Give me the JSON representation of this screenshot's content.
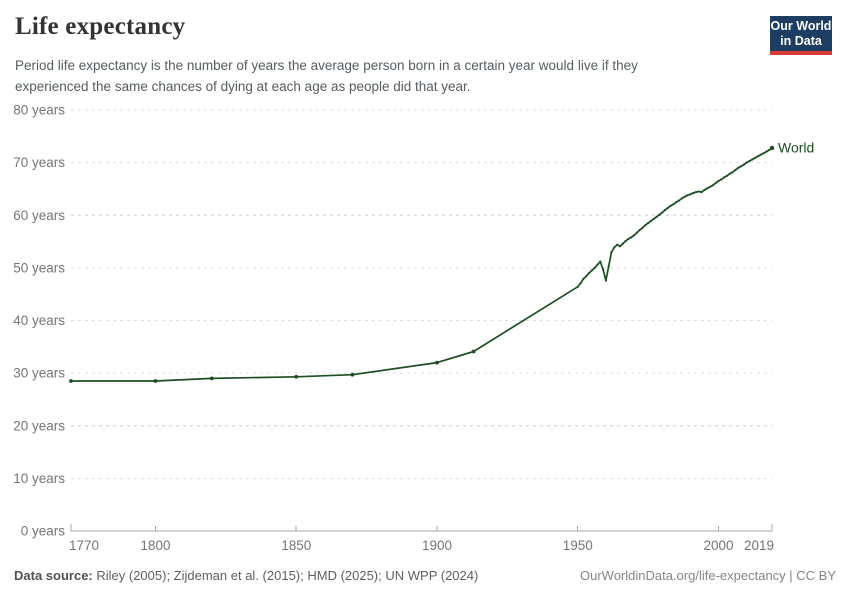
{
  "header": {
    "title": "Life expectancy",
    "subtitle_lines": [
      "Period life expectancy is the number of years the average person born in a certain year would live if they",
      "experienced the same chances of dying at each age as people did that year."
    ],
    "logo": {
      "line1": "Our World",
      "line2": "in Data"
    }
  },
  "footer": {
    "source_label": "Data source:",
    "sources": " Riley (2005); Zijdeman et al. (2015); HMD (2025); UN WPP (2024)",
    "link": "OurWorldinData.org/life-expectancy | CC BY"
  },
  "colors": {
    "line": "#1d4e24",
    "grid": "#dcdcdc",
    "axis": "#a8a8a8",
    "tick_label": "#757575",
    "logo_bg": "#1d3d63",
    "logo_red": "#d73c34"
  },
  "chart_data": {
    "type": "line",
    "title": "Life expectancy",
    "xlabel": "",
    "ylabel": "",
    "xlim": [
      1770,
      2019
    ],
    "ylim": [
      0,
      80
    ],
    "x_ticks": [
      1770,
      1800,
      1850,
      1900,
      1950,
      2000,
      2019
    ],
    "y_ticks": [
      0,
      10,
      20,
      30,
      40,
      50,
      60,
      70,
      80
    ],
    "y_tick_suffix": " years",
    "grid": "horizontal-dashed",
    "legend_position": "end-of-line",
    "series": [
      {
        "name": "World",
        "color": "#1d4e24",
        "points": [
          [
            1770,
            28.5
          ],
          [
            1800,
            28.5
          ],
          [
            1820,
            29.0
          ],
          [
            1850,
            29.3
          ],
          [
            1870,
            29.7
          ],
          [
            1900,
            32.0
          ],
          [
            1913,
            34.1
          ],
          [
            1950,
            46.4
          ],
          [
            1951,
            47.1
          ],
          [
            1952,
            47.9
          ],
          [
            1953,
            48.4
          ],
          [
            1954,
            49.0
          ],
          [
            1955,
            49.5
          ],
          [
            1956,
            50.0
          ],
          [
            1957,
            50.6
          ],
          [
            1958,
            51.2
          ],
          [
            1959,
            49.7
          ],
          [
            1960,
            47.6
          ],
          [
            1961,
            50.3
          ],
          [
            1962,
            53.0
          ],
          [
            1963,
            53.9
          ],
          [
            1964,
            54.4
          ],
          [
            1965,
            54.1
          ],
          [
            1966,
            54.6
          ],
          [
            1967,
            55.1
          ],
          [
            1968,
            55.5
          ],
          [
            1969,
            55.8
          ],
          [
            1970,
            56.2
          ],
          [
            1971,
            56.7
          ],
          [
            1972,
            57.2
          ],
          [
            1973,
            57.6
          ],
          [
            1974,
            58.1
          ],
          [
            1975,
            58.5
          ],
          [
            1976,
            58.9
          ],
          [
            1977,
            59.3
          ],
          [
            1978,
            59.7
          ],
          [
            1979,
            60.1
          ],
          [
            1980,
            60.5
          ],
          [
            1981,
            61.0
          ],
          [
            1982,
            61.4
          ],
          [
            1983,
            61.8
          ],
          [
            1984,
            62.1
          ],
          [
            1985,
            62.5
          ],
          [
            1986,
            62.8
          ],
          [
            1987,
            63.2
          ],
          [
            1988,
            63.5
          ],
          [
            1989,
            63.8
          ],
          [
            1990,
            64.0
          ],
          [
            1991,
            64.2
          ],
          [
            1992,
            64.4
          ],
          [
            1993,
            64.5
          ],
          [
            1994,
            64.4
          ],
          [
            1995,
            64.8
          ],
          [
            1996,
            65.1
          ],
          [
            1997,
            65.4
          ],
          [
            1998,
            65.7
          ],
          [
            1999,
            66.1
          ],
          [
            2000,
            66.5
          ],
          [
            2001,
            66.8
          ],
          [
            2002,
            67.2
          ],
          [
            2003,
            67.5
          ],
          [
            2004,
            67.9
          ],
          [
            2005,
            68.2
          ],
          [
            2006,
            68.6
          ],
          [
            2007,
            69.0
          ],
          [
            2008,
            69.3
          ],
          [
            2009,
            69.6
          ],
          [
            2010,
            70.0
          ],
          [
            2011,
            70.3
          ],
          [
            2012,
            70.6
          ],
          [
            2013,
            70.9
          ],
          [
            2014,
            71.2
          ],
          [
            2015,
            71.5
          ],
          [
            2016,
            71.8
          ],
          [
            2017,
            72.1
          ],
          [
            2018,
            72.4
          ],
          [
            2019,
            72.8
          ]
        ]
      }
    ]
  }
}
